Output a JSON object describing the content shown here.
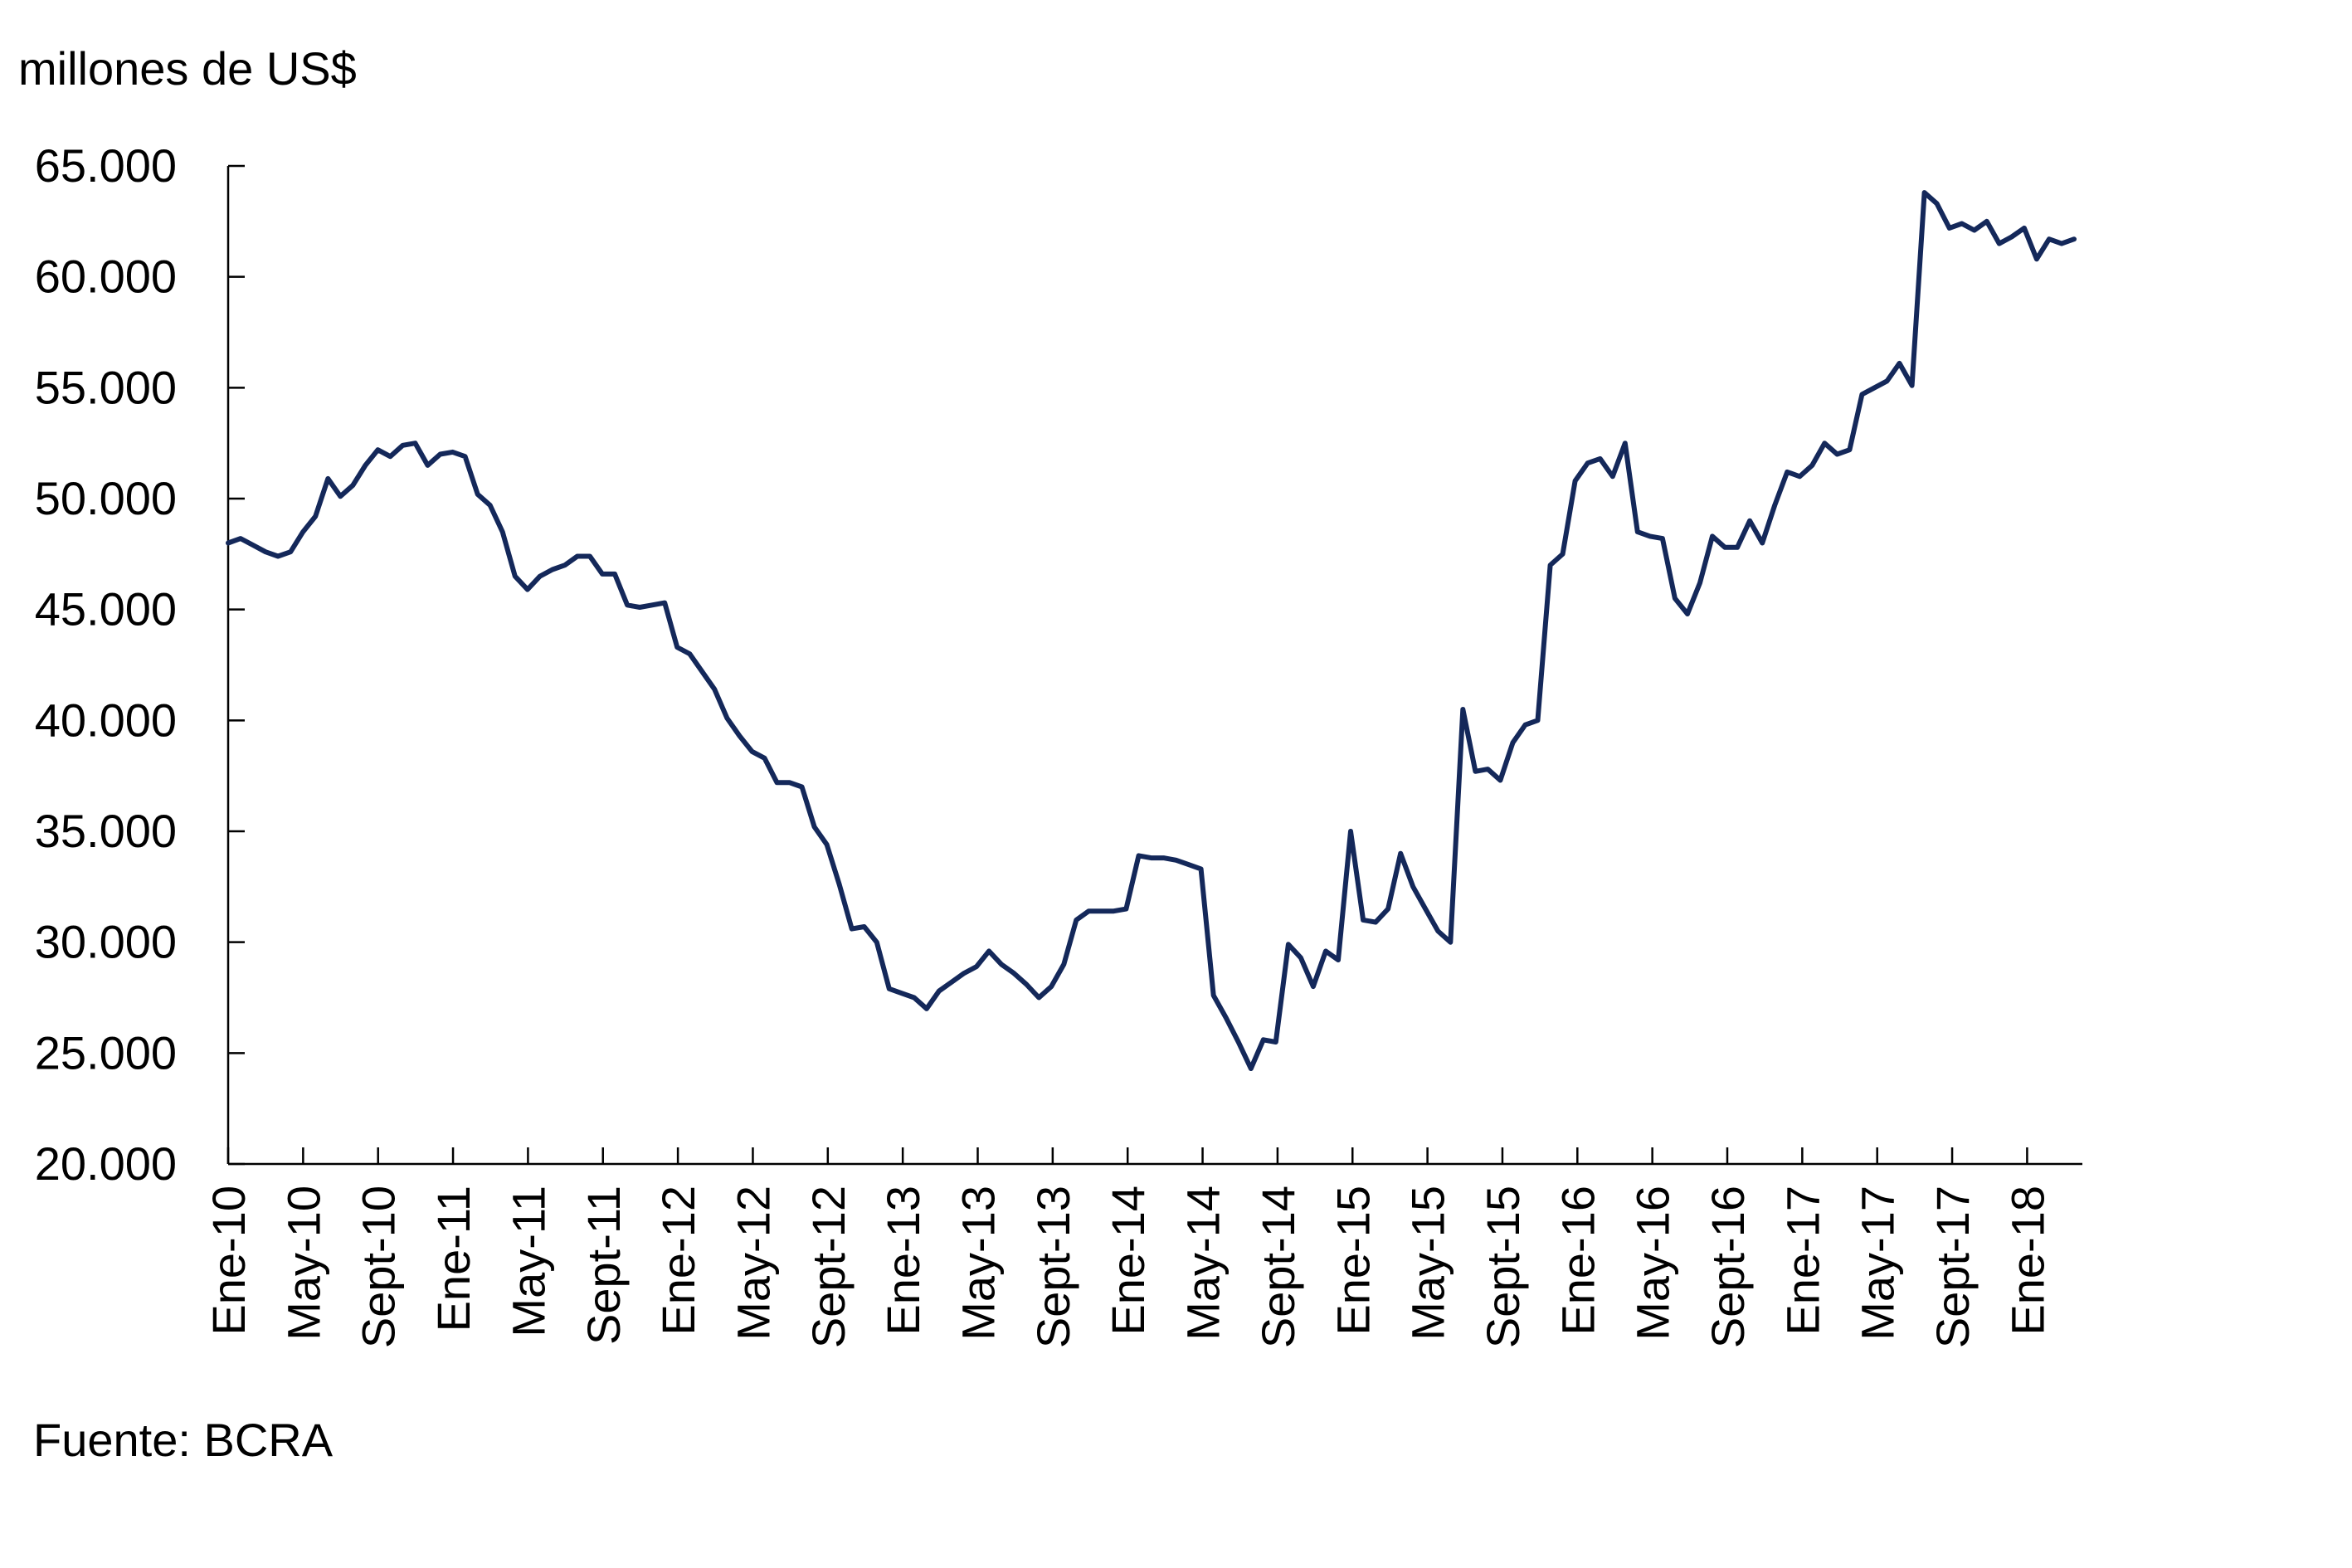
{
  "chart_data": {
    "type": "line",
    "ylabel": "millones de US$",
    "source": "Fuente: BCRA",
    "ylim": [
      20000,
      65000
    ],
    "yticks": [
      20000,
      25000,
      30000,
      35000,
      40000,
      45000,
      50000,
      55000,
      60000,
      65000
    ],
    "ytick_labels": [
      "20.000",
      "25.000",
      "30.000",
      "35.000",
      "40.000",
      "45.000",
      "50.000",
      "55.000",
      "60.000",
      "65.000"
    ],
    "xtick_labels": [
      "Ene-10",
      "May-10",
      "Sept-10",
      "Ene-11",
      "May-11",
      "Sept-11",
      "Ene-12",
      "May-12",
      "Sept-12",
      "Ene-13",
      "May-13",
      "Sept-13",
      "Ene-14",
      "May-14",
      "Sept-14",
      "Ene-15",
      "May-15",
      "Sept-15",
      "Ene-16",
      "May-16",
      "Sept-16",
      "Ene-17",
      "May-17",
      "Sept-17",
      "Ene-18"
    ],
    "series_color": "#14285a",
    "grid": false,
    "series": [
      {
        "values_note": "",
        "x": [
          0,
          1,
          2,
          3,
          4,
          5,
          6,
          7,
          8,
          9,
          10,
          11,
          12,
          13,
          14,
          15,
          16,
          17,
          18,
          19,
          20,
          21,
          22,
          23,
          24,
          25,
          26,
          27,
          28,
          29,
          30,
          31,
          32,
          33,
          34,
          35,
          36,
          37,
          38,
          39,
          40,
          41,
          42,
          43,
          44,
          45,
          46,
          47,
          48,
          49,
          50,
          51,
          52,
          53,
          54,
          55,
          56,
          57,
          58,
          59,
          60,
          61,
          62,
          63,
          64,
          65,
          66,
          67,
          68,
          69,
          70,
          71,
          72,
          73,
          74,
          75,
          76,
          77,
          78,
          79,
          80,
          81,
          82,
          83,
          84,
          85,
          86,
          87,
          88,
          89,
          90,
          91,
          92,
          93,
          94,
          95,
          96,
          97,
          98,
          99,
          100
        ],
        "values": [
          48000,
          48200,
          47900,
          47600,
          47400,
          47600,
          48500,
          49200,
          50900,
          50100,
          50600,
          51500,
          52200,
          51900,
          52400,
          52500,
          51500,
          52000,
          52100,
          51900,
          50200,
          49700,
          48500,
          46500,
          45900,
          46500,
          46800,
          47000,
          47400,
          47400,
          46600,
          46600,
          45200,
          45100,
          45200,
          45300,
          43300,
          43000,
          42200,
          41400,
          40100,
          39300,
          38600,
          38300,
          37200,
          37200,
          37000,
          35200,
          34400,
          32600,
          30600,
          30700,
          30000,
          27900,
          27700,
          27500,
          27000,
          27800,
          28200,
          28600,
          28900,
          29600,
          29000,
          28600,
          28100,
          27500,
          28000,
          29000,
          31000,
          31400,
          31400,
          31400,
          31500,
          33900,
          33800,
          33800,
          33700,
          33500,
          33300,
          27600,
          26600,
          25500,
          24300,
          25600,
          25500,
          29900,
          29300,
          28000,
          29600,
          29200,
          35000,
          31000,
          30900,
          31500,
          34000,
          32500,
          31500,
          30500,
          30000,
          40500,
          37700
        ]
      },
      {
        "values_note": "",
        "x": [
          101,
          102,
          103,
          104,
          105,
          106,
          107,
          108,
          109,
          110,
          111,
          112,
          113,
          114,
          115,
          116,
          117,
          118,
          119,
          120,
          121,
          122,
          123,
          124,
          125,
          126,
          127,
          128,
          129,
          130,
          131,
          132,
          133,
          134,
          135,
          136,
          137,
          138,
          139,
          140,
          141,
          142,
          143,
          144,
          145,
          146,
          147,
          148
        ],
        "values": [
          37800,
          37300,
          39000,
          39800,
          40000,
          47000,
          47500,
          50800,
          51600,
          51800,
          51000,
          52500,
          48500,
          48300,
          48200,
          45500,
          44800,
          46200,
          48300,
          47800,
          47800,
          49000,
          48000,
          49700,
          51200,
          51000,
          51500,
          52500,
          52000,
          52200,
          54700,
          55000,
          55300,
          56100,
          55100,
          63800,
          63300,
          62200,
          62400,
          62100,
          62500,
          61500,
          61800,
          62200,
          60800,
          61700,
          61500,
          61700
        ]
      }
    ]
  }
}
